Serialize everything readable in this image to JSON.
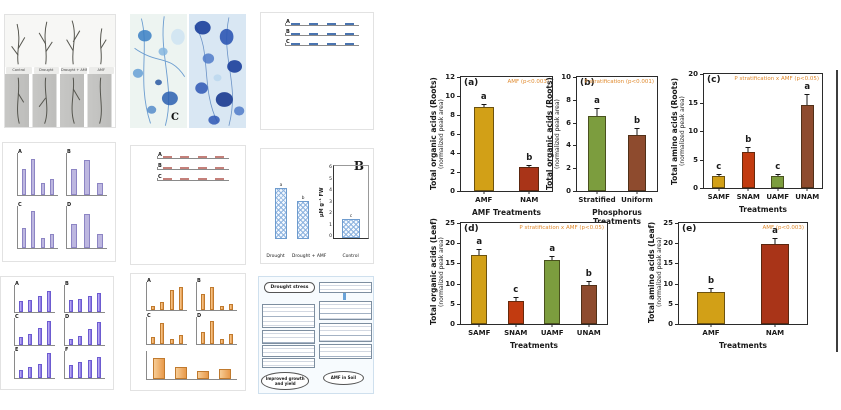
{
  "accent_annotation_color": "#e08a2e",
  "scrollbar_color": "#3d3d3d",
  "gallery": {
    "thumb_photos": {
      "labels": [
        "Control",
        "Drought",
        "Drought + AMF",
        "AMF"
      ]
    },
    "thumb_micro": {
      "letter": "C"
    },
    "thumb_blue": {
      "panels": [
        {
          "letter": "A",
          "values": [
            2.4,
            2.7,
            3.4,
            4.6
          ],
          "max": 6,
          "color": "#86abdc",
          "stroke": "#4a74b0"
        },
        {
          "letter": "B",
          "values": [
            3.0,
            3.2,
            3.6,
            3.9
          ],
          "max": 5,
          "color": "#86abdc",
          "stroke": "#4a74b0"
        },
        {
          "letter": "C",
          "values": [
            1.6,
            1.9,
            2.8,
            3.3
          ],
          "max": 5,
          "color": "#86abdc",
          "stroke": "#4a74b0"
        }
      ]
    },
    "thumb_lavender": {
      "panels": [
        {
          "letter": "A",
          "values": [
            5.0,
            6.8,
            2.3,
            3.1
          ],
          "max": 8,
          "color": "#bdb7e0",
          "stroke": "#8d85c4"
        },
        {
          "letter": "B",
          "values": [
            3.4,
            4.6,
            1.6
          ],
          "max": 5.5,
          "color": "#bdb7e0",
          "stroke": "#8d85c4"
        },
        {
          "letter": "C",
          "values": [
            3.4,
            6.2,
            1.7,
            2.3
          ],
          "max": 7,
          "color": "#bdb7e0",
          "stroke": "#8d85c4"
        },
        {
          "letter": "D",
          "values": [
            3.1,
            4.4,
            1.8
          ],
          "max": 5.5,
          "color": "#bdb7e0",
          "stroke": "#8d85c4"
        }
      ]
    },
    "thumb_pink": {
      "panels": [
        {
          "letter": "A",
          "values": [
            1.7,
            2.0,
            3.6,
            4.5
          ],
          "max": 5.5,
          "color": "#eaaaa5",
          "stroke": "#c4807a"
        },
        {
          "letter": "B",
          "values": [
            1.3,
            1.7,
            3.3,
            4.7
          ],
          "max": 5.5,
          "color": "#eaaaa5",
          "stroke": "#c4807a"
        },
        {
          "letter": "C",
          "values": [
            2.6,
            3.9,
            1.6,
            2.1
          ],
          "max": 5,
          "color": "#eaaaa5",
          "stroke": "#c4807a"
        }
      ]
    },
    "thumb_hatch": {
      "big_letter": "B",
      "ylabel": "µM g⁻¹ FW",
      "yticks": [
        6,
        5,
        4,
        3,
        2,
        1,
        0
      ],
      "xlabels": [
        "Drought",
        "Drought + AMF",
        "Control"
      ],
      "group1": {
        "values": [
          4.6,
          3.5
        ],
        "max": 6,
        "letters": [
          "a",
          "b"
        ],
        "hatch": true
      },
      "group2": {
        "values": [
          1.6
        ],
        "max": 6,
        "letters": [
          "c"
        ],
        "hatch": true
      }
    },
    "thumb_purple": {
      "panels": [
        {
          "letter": "A",
          "values": [
            2.0,
            2.2,
            3.0,
            3.9
          ],
          "max": 5,
          "color": "linear-gradient(90deg,#cabcf6,#7e6ae0)",
          "stroke": "#6c5bd0"
        },
        {
          "letter": "B",
          "values": [
            2.2,
            2.5,
            3.0,
            3.6
          ],
          "max": 5,
          "color": "linear-gradient(90deg,#cabcf6,#7e6ae0)",
          "stroke": "#6c5bd0"
        },
        {
          "letter": "C",
          "values": [
            1.4,
            2.0,
            3.2,
            4.4
          ],
          "max": 5,
          "color": "linear-gradient(90deg,#cabcf6,#7e6ae0)",
          "stroke": "#6c5bd0"
        },
        {
          "letter": "D",
          "values": [
            1.2,
            1.6,
            3.0,
            4.2
          ],
          "max": 5,
          "color": "linear-gradient(90deg,#cabcf6,#7e6ae0)",
          "stroke": "#6c5bd0"
        },
        {
          "letter": "E",
          "values": [
            1.5,
            2.0,
            2.6,
            4.6
          ],
          "max": 5,
          "color": "linear-gradient(90deg,#cabcf6,#7e6ae0)",
          "stroke": "#6c5bd0"
        },
        {
          "letter": "F",
          "values": [
            2.4,
            2.9,
            3.4,
            3.9
          ],
          "max": 5,
          "color": "linear-gradient(90deg,#cabcf6,#7e6ae0)",
          "stroke": "#6c5bd0"
        }
      ]
    },
    "thumb_orange": {
      "panels": [
        {
          "letter": "A",
          "values": [
            0.6,
            1.1,
            2.9,
            3.3
          ],
          "max": 4,
          "color": "linear-gradient(90deg,#f7cd96,#e8994a)",
          "stroke": "#c07a2e"
        },
        {
          "letter": "B",
          "values": [
            2.9,
            4.1,
            0.6,
            1.1
          ],
          "max": 5,
          "color": "linear-gradient(90deg,#f7cd96,#e8994a)",
          "stroke": "#c07a2e"
        },
        {
          "letter": "C",
          "values": [
            1.3,
            3.9,
            0.9,
            1.6
          ],
          "max": 5,
          "color": "linear-gradient(90deg,#f7cd96,#e8994a)",
          "stroke": "#c07a2e"
        },
        {
          "letter": "D",
          "values": [
            2.3,
            4.3,
            0.9,
            1.9
          ],
          "max": 5,
          "color": "linear-gradient(90deg,#f7cd96,#e8994a)",
          "stroke": "#c07a2e"
        },
        {
          "letter": "",
          "values": [
            4.6,
            2.6,
            1.7,
            2.1
          ],
          "max": 6,
          "color": "linear-gradient(90deg,#f7cd96,#e8994a)",
          "stroke": "#c07a2e"
        }
      ]
    },
    "thumb_flow": {
      "title": "Drought stress",
      "oval1": "Improved growth and yield",
      "oval2": "AMF in Soil"
    }
  },
  "chart_data": [
    {
      "type": "bar",
      "panel_label": "(a)",
      "annotation": "AMF (p<0.003)",
      "ylabel": "Total organic acids (Roots)",
      "ylabel2": "(normalized peak area)",
      "xlabel": "AMF Treatments",
      "ylim": [
        0,
        12
      ],
      "yticks": [
        0,
        2,
        4,
        6,
        8,
        10,
        12
      ],
      "categories": [
        "AMF",
        "NAM"
      ],
      "values": [
        8.8,
        2.5
      ],
      "errors": [
        0.35,
        0.2
      ],
      "letters": [
        "a",
        "b"
      ],
      "colors": [
        "#d2a017",
        "#a93418"
      ]
    },
    {
      "type": "bar",
      "panel_label": "(b)",
      "annotation": "P stratification (p<0.001)",
      "ylabel": "Total organic acids (Roots)",
      "ylabel2": "(normalized peak area)",
      "xlabel": "Phosphorus Treatments",
      "ylim": [
        0,
        10
      ],
      "yticks": [
        0,
        2,
        4,
        6,
        8,
        10
      ],
      "categories": [
        "Stratified",
        "Uniform"
      ],
      "values": [
        6.6,
        4.9
      ],
      "errors": [
        0.7,
        0.6
      ],
      "letters": [
        "a",
        "b"
      ],
      "colors": [
        "#7c9d3e",
        "#8e4b2e"
      ]
    },
    {
      "type": "bar",
      "panel_label": "(c)",
      "annotation": "P stratification x AMF (p<0.05)",
      "ylabel": "Total amino acids (Roots)",
      "ylabel2": "(normalized peak area)",
      "xlabel": "Treatments",
      "ylim": [
        0,
        20
      ],
      "yticks": [
        0,
        5,
        10,
        15,
        20
      ],
      "categories": [
        "SAMF",
        "SNAM",
        "UAMF",
        "UNAM"
      ],
      "values": [
        2.1,
        6.3,
        2.1,
        14.5
      ],
      "errors": [
        0.3,
        0.9,
        0.4,
        2.0
      ],
      "letters": [
        "c",
        "b",
        "c",
        "a"
      ],
      "colors": [
        "#d2a017",
        "#c23b10",
        "#7c9d3e",
        "#8e4b2e"
      ]
    },
    {
      "type": "bar",
      "panel_label": "(d)",
      "annotation": "P stratification x AMF (p<0.05)",
      "ylabel": "Total organic acids (Leaf)",
      "ylabel2": "(normalized peak area)",
      "xlabel": "Treatments",
      "ylim": [
        0,
        25
      ],
      "yticks": [
        0,
        5,
        10,
        15,
        20,
        25
      ],
      "categories": [
        "SAMF",
        "SNAM",
        "UAMF",
        "UNAM"
      ],
      "values": [
        17.0,
        5.7,
        15.9,
        9.7
      ],
      "errors": [
        1.5,
        1.0,
        1.0,
        1.0
      ],
      "letters": [
        "a",
        "c",
        "a",
        "b"
      ],
      "colors": [
        "#d2a017",
        "#c23b10",
        "#7c9d3e",
        "#8e4b2e"
      ]
    },
    {
      "type": "bar",
      "panel_label": "(e)",
      "annotation": "AMF (p<0.003)",
      "ylabel": "Total amino acids (Leaf)",
      "ylabel2": "(normalized peak area)",
      "xlabel": "Treatments",
      "ylim": [
        0,
        25
      ],
      "yticks": [
        0,
        5,
        10,
        15,
        20,
        25
      ],
      "categories": [
        "AMF",
        "NAM"
      ],
      "values": [
        8.0,
        19.8
      ],
      "errors": [
        0.8,
        1.5
      ],
      "letters": [
        "b",
        "a"
      ],
      "colors": [
        "#d2a017",
        "#a93418"
      ]
    }
  ]
}
